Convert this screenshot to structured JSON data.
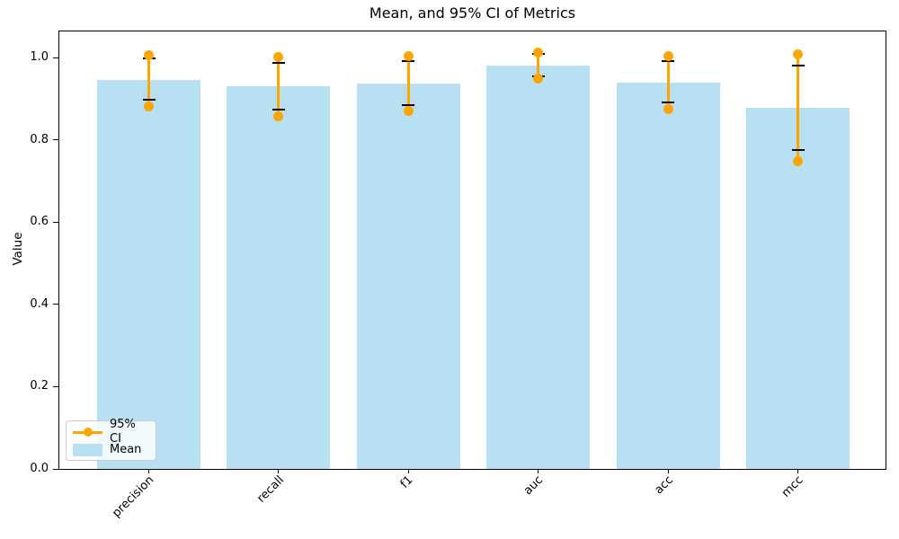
{
  "chart_data": {
    "type": "bar",
    "title": "Mean, and 95% CI of Metrics",
    "xlabel": "",
    "ylabel": "Value",
    "categories": [
      "precision",
      "recall",
      "f1",
      "auc",
      "acc",
      "mcc"
    ],
    "series": [
      {
        "name": "Mean",
        "type": "bar",
        "color": "#b7e0f2",
        "values": [
          0.945,
          0.93,
          0.937,
          0.98,
          0.938,
          0.877
        ]
      },
      {
        "name": "95% CI",
        "type": "errorbar",
        "color": "#ffa500",
        "low": [
          0.882,
          0.858,
          0.869,
          0.948,
          0.874,
          0.748
        ],
        "high": [
          1.005,
          1.001,
          1.004,
          1.012,
          1.004,
          1.007
        ]
      }
    ],
    "error_caps": {
      "color": "#000000",
      "low": [
        0.897,
        0.873,
        0.884,
        0.954,
        0.89,
        0.776
      ],
      "high": [
        0.997,
        0.986,
        0.992,
        1.008,
        0.992,
        0.98
      ]
    },
    "ylim": [
      0,
      1.065
    ],
    "yticks": [
      0.0,
      0.2,
      0.4,
      0.6,
      0.8,
      1.0
    ],
    "grid": false,
    "legend_position": "lower left"
  },
  "legend": {
    "entries": [
      {
        "label": "95% CI"
      },
      {
        "label": "Mean"
      }
    ]
  }
}
